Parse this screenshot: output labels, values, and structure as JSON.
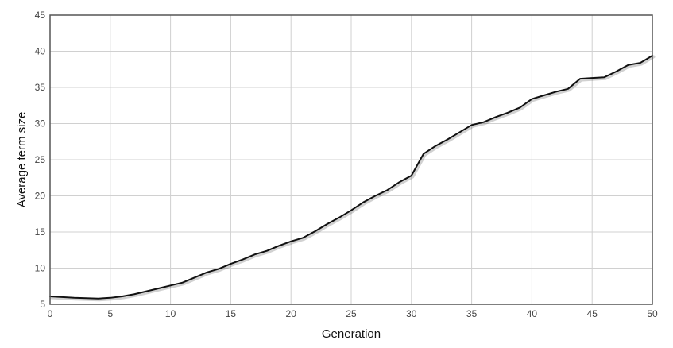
{
  "chart_data": {
    "type": "line",
    "title": "",
    "xlabel": "Generation",
    "ylabel": "Average term size",
    "xlim": [
      0,
      50
    ],
    "ylim": [
      5,
      45
    ],
    "x_ticks": [
      0,
      5,
      10,
      15,
      20,
      25,
      30,
      35,
      40,
      45,
      50
    ],
    "y_ticks": [
      5,
      10,
      15,
      20,
      25,
      30,
      35,
      40,
      45
    ],
    "grid": true,
    "legend": "none",
    "line_color": "#111111",
    "grid_color": "#d0d0d0",
    "series": [
      {
        "x": [
          0,
          1,
          2,
          3,
          4,
          5,
          6,
          7,
          8,
          9,
          10,
          11,
          12,
          13,
          14,
          15,
          16,
          17,
          18,
          19,
          20,
          21,
          22,
          23,
          24,
          25,
          26,
          27,
          28,
          29,
          30,
          31,
          32,
          33,
          34,
          35,
          36,
          37,
          38,
          39,
          40,
          41,
          42,
          43,
          44,
          45,
          46,
          47,
          48,
          49,
          50
        ],
        "y": [
          6.1,
          6.0,
          5.9,
          5.85,
          5.8,
          5.9,
          6.1,
          6.4,
          6.8,
          7.2,
          7.6,
          8.0,
          8.7,
          9.4,
          9.9,
          10.6,
          11.2,
          11.9,
          12.4,
          13.1,
          13.7,
          14.2,
          15.1,
          16.1,
          17.0,
          18.0,
          19.1,
          20.0,
          20.8,
          21.9,
          22.8,
          25.8,
          26.9,
          27.8,
          28.8,
          29.8,
          30.2,
          30.9,
          31.5,
          32.2,
          33.4,
          33.9,
          34.4,
          34.8,
          36.2,
          36.3,
          36.4,
          37.2,
          38.1,
          38.4,
          39.4
        ]
      }
    ]
  }
}
